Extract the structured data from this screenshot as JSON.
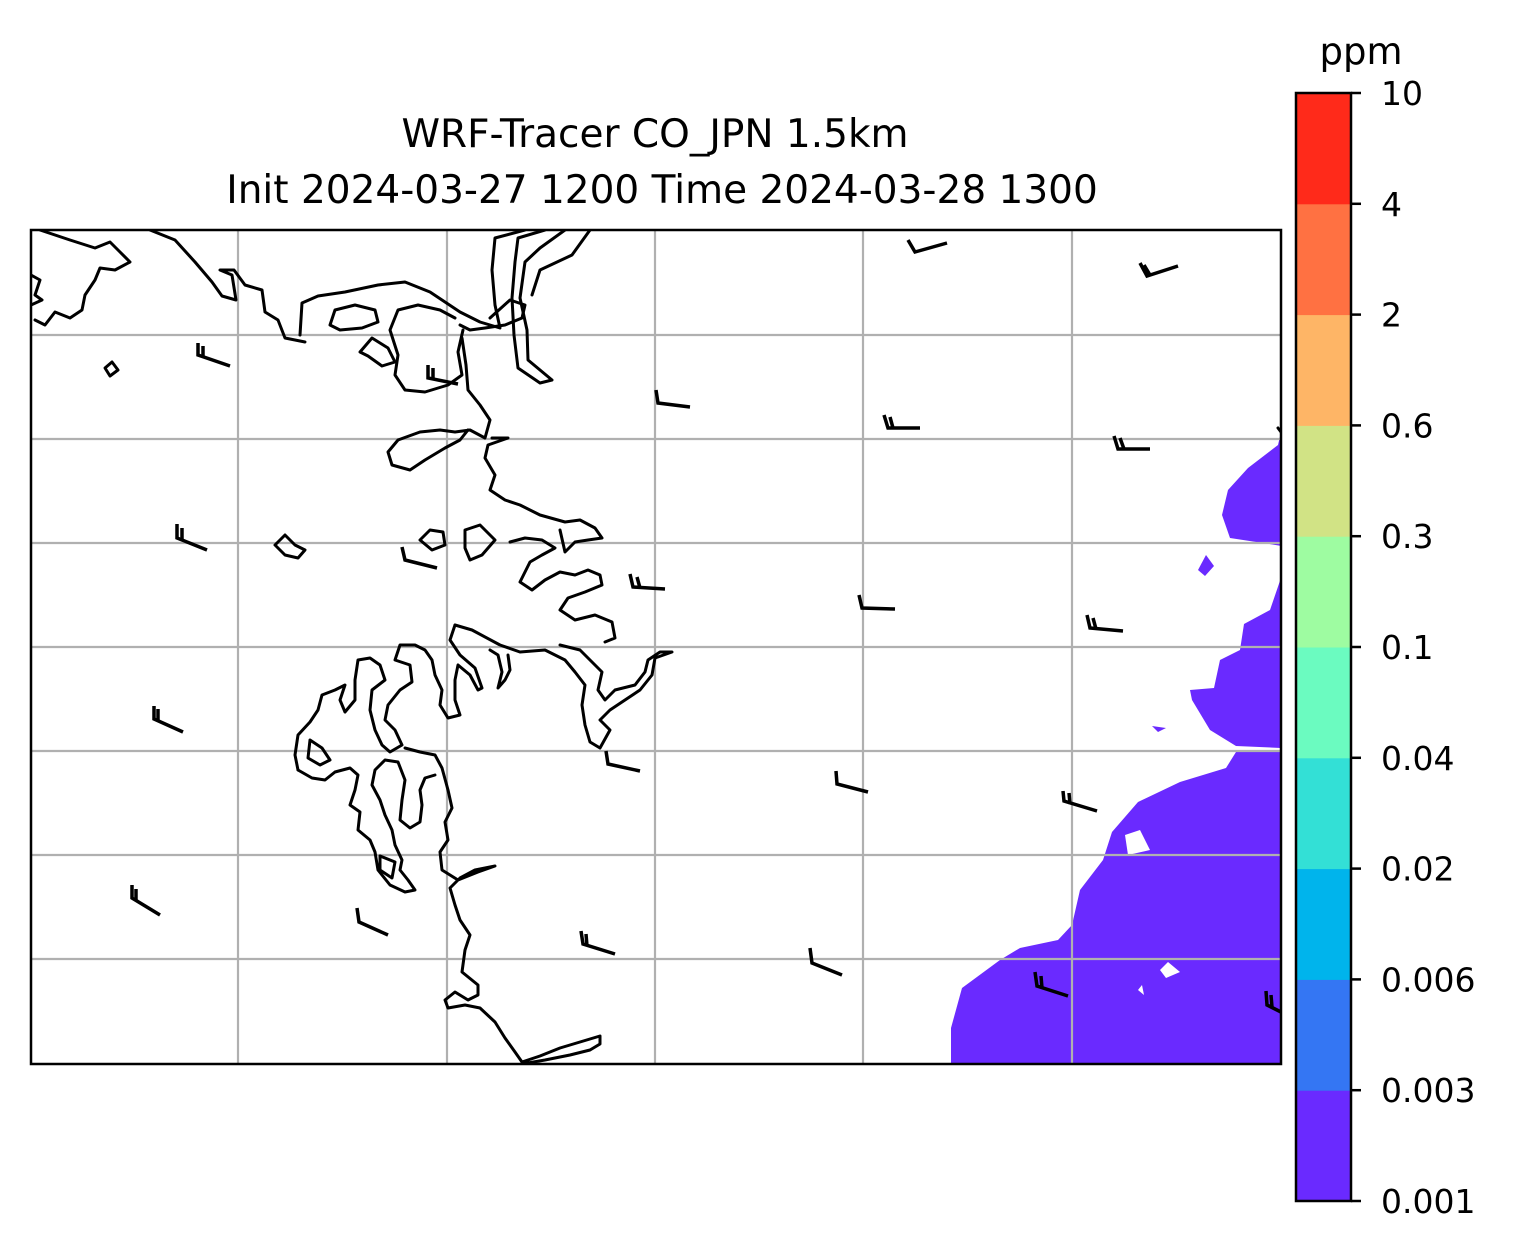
{
  "title": {
    "line1": "WRF-Tracer CO_JPN 1.5km",
    "line2": "Init 2024-03-27 1200 Time 2024-03-28 1300"
  },
  "colorbar": {
    "unit": "ppm",
    "levels": [
      "0.001",
      "0.003",
      "0.006",
      "0.02",
      "0.04",
      "0.1",
      "0.3",
      "0.6",
      "2",
      "4",
      "10"
    ],
    "colors": [
      "#6a2aff",
      "#3476f3",
      "#00b4ec",
      "#33e0d6",
      "#6bfbc0",
      "#9efca1",
      "#d1e385",
      "#feb566",
      "#ff7142",
      "#ff2a1a"
    ]
  },
  "map": {
    "field_fill_color": "#6a2aff",
    "gridlines": true,
    "wind_barbs": true
  }
}
